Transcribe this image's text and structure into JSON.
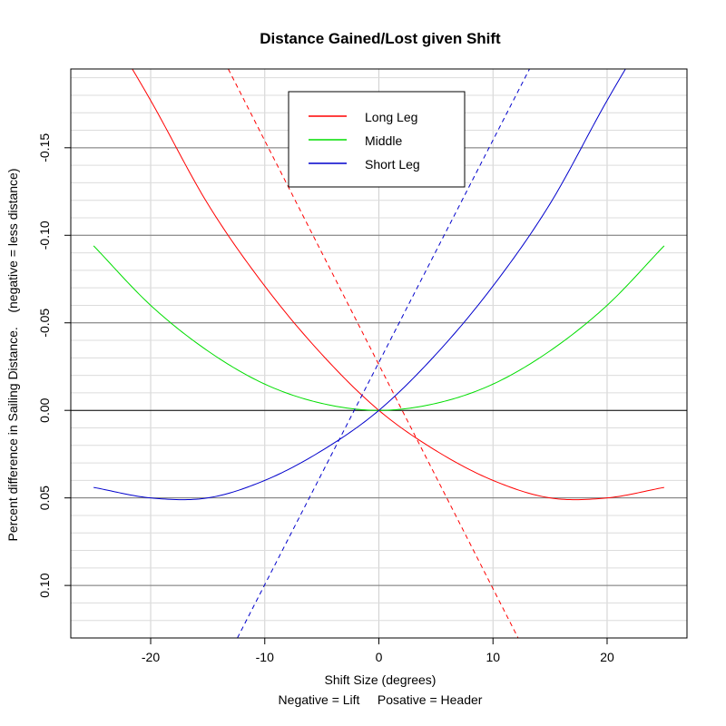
{
  "chart_data": {
    "type": "line",
    "title": "Distance Gained/Lost given Shift",
    "xlabel": "Shift Size (degrees)",
    "xlabel2": "Negative = Lift     Posative = Header",
    "ylabel": "Percent difference in Sailing Distance.    (negative = less distance)",
    "xlim": [
      -27,
      27
    ],
    "ylim": [
      0.13,
      -0.195
    ],
    "x_ticks": [
      -20,
      -10,
      0,
      10,
      20
    ],
    "x_tick_labels": [
      "-20",
      "-10",
      "0",
      "10",
      "20"
    ],
    "y_ticks": [
      -0.15,
      -0.1,
      -0.05,
      0.0,
      0.05,
      0.1
    ],
    "y_tick_labels": [
      "-0.15",
      "-0.10",
      "-0.05",
      "0.00",
      "0.05",
      "0.10"
    ],
    "grid": true,
    "legend_position": "top-center",
    "series": [
      {
        "name": "Long Leg",
        "color": "#ff0000",
        "style": "solid",
        "x": [
          -25,
          -20,
          -15,
          -10,
          -5,
          0,
          5,
          10,
          15,
          20,
          25
        ],
        "y": [
          -0.232,
          -0.177,
          -0.118,
          -0.071,
          -0.032,
          0.0,
          0.023,
          0.04,
          0.05,
          0.05,
          0.044
        ]
      },
      {
        "name": "Middle",
        "color": "#00dd00",
        "style": "solid",
        "x": [
          -25,
          -20,
          -15,
          -10,
          -5,
          0,
          5,
          10,
          15,
          20,
          25
        ],
        "y": [
          -0.094,
          -0.06,
          -0.034,
          -0.015,
          -0.004,
          0.0,
          -0.004,
          -0.015,
          -0.034,
          -0.06,
          -0.094
        ]
      },
      {
        "name": "Short Leg",
        "color": "#0000cc",
        "style": "solid",
        "x": [
          -25,
          -20,
          -15,
          -10,
          -5,
          0,
          5,
          10,
          15,
          20,
          25
        ],
        "y": [
          0.044,
          0.05,
          0.05,
          0.04,
          0.023,
          0.0,
          -0.032,
          -0.071,
          -0.118,
          -0.177,
          -0.232
        ]
      },
      {
        "name": "",
        "color": "#ff0000",
        "style": "dashed",
        "x": [
          -13.2,
          12.2
        ],
        "y": [
          -0.195,
          0.13
        ]
      },
      {
        "name": "",
        "color": "#0000cc",
        "style": "dashed",
        "x": [
          -12.4,
          13.2
        ],
        "y": [
          0.13,
          -0.195
        ]
      }
    ],
    "horizontal_lines": [
      {
        "y": 0.0,
        "color": "#000000"
      },
      {
        "y": -0.15,
        "color": "#777777"
      },
      {
        "y": -0.1,
        "color": "#777777"
      },
      {
        "y": -0.05,
        "color": "#777777"
      },
      {
        "y": 0.05,
        "color": "#777777"
      },
      {
        "y": 0.1,
        "color": "#777777"
      }
    ]
  }
}
